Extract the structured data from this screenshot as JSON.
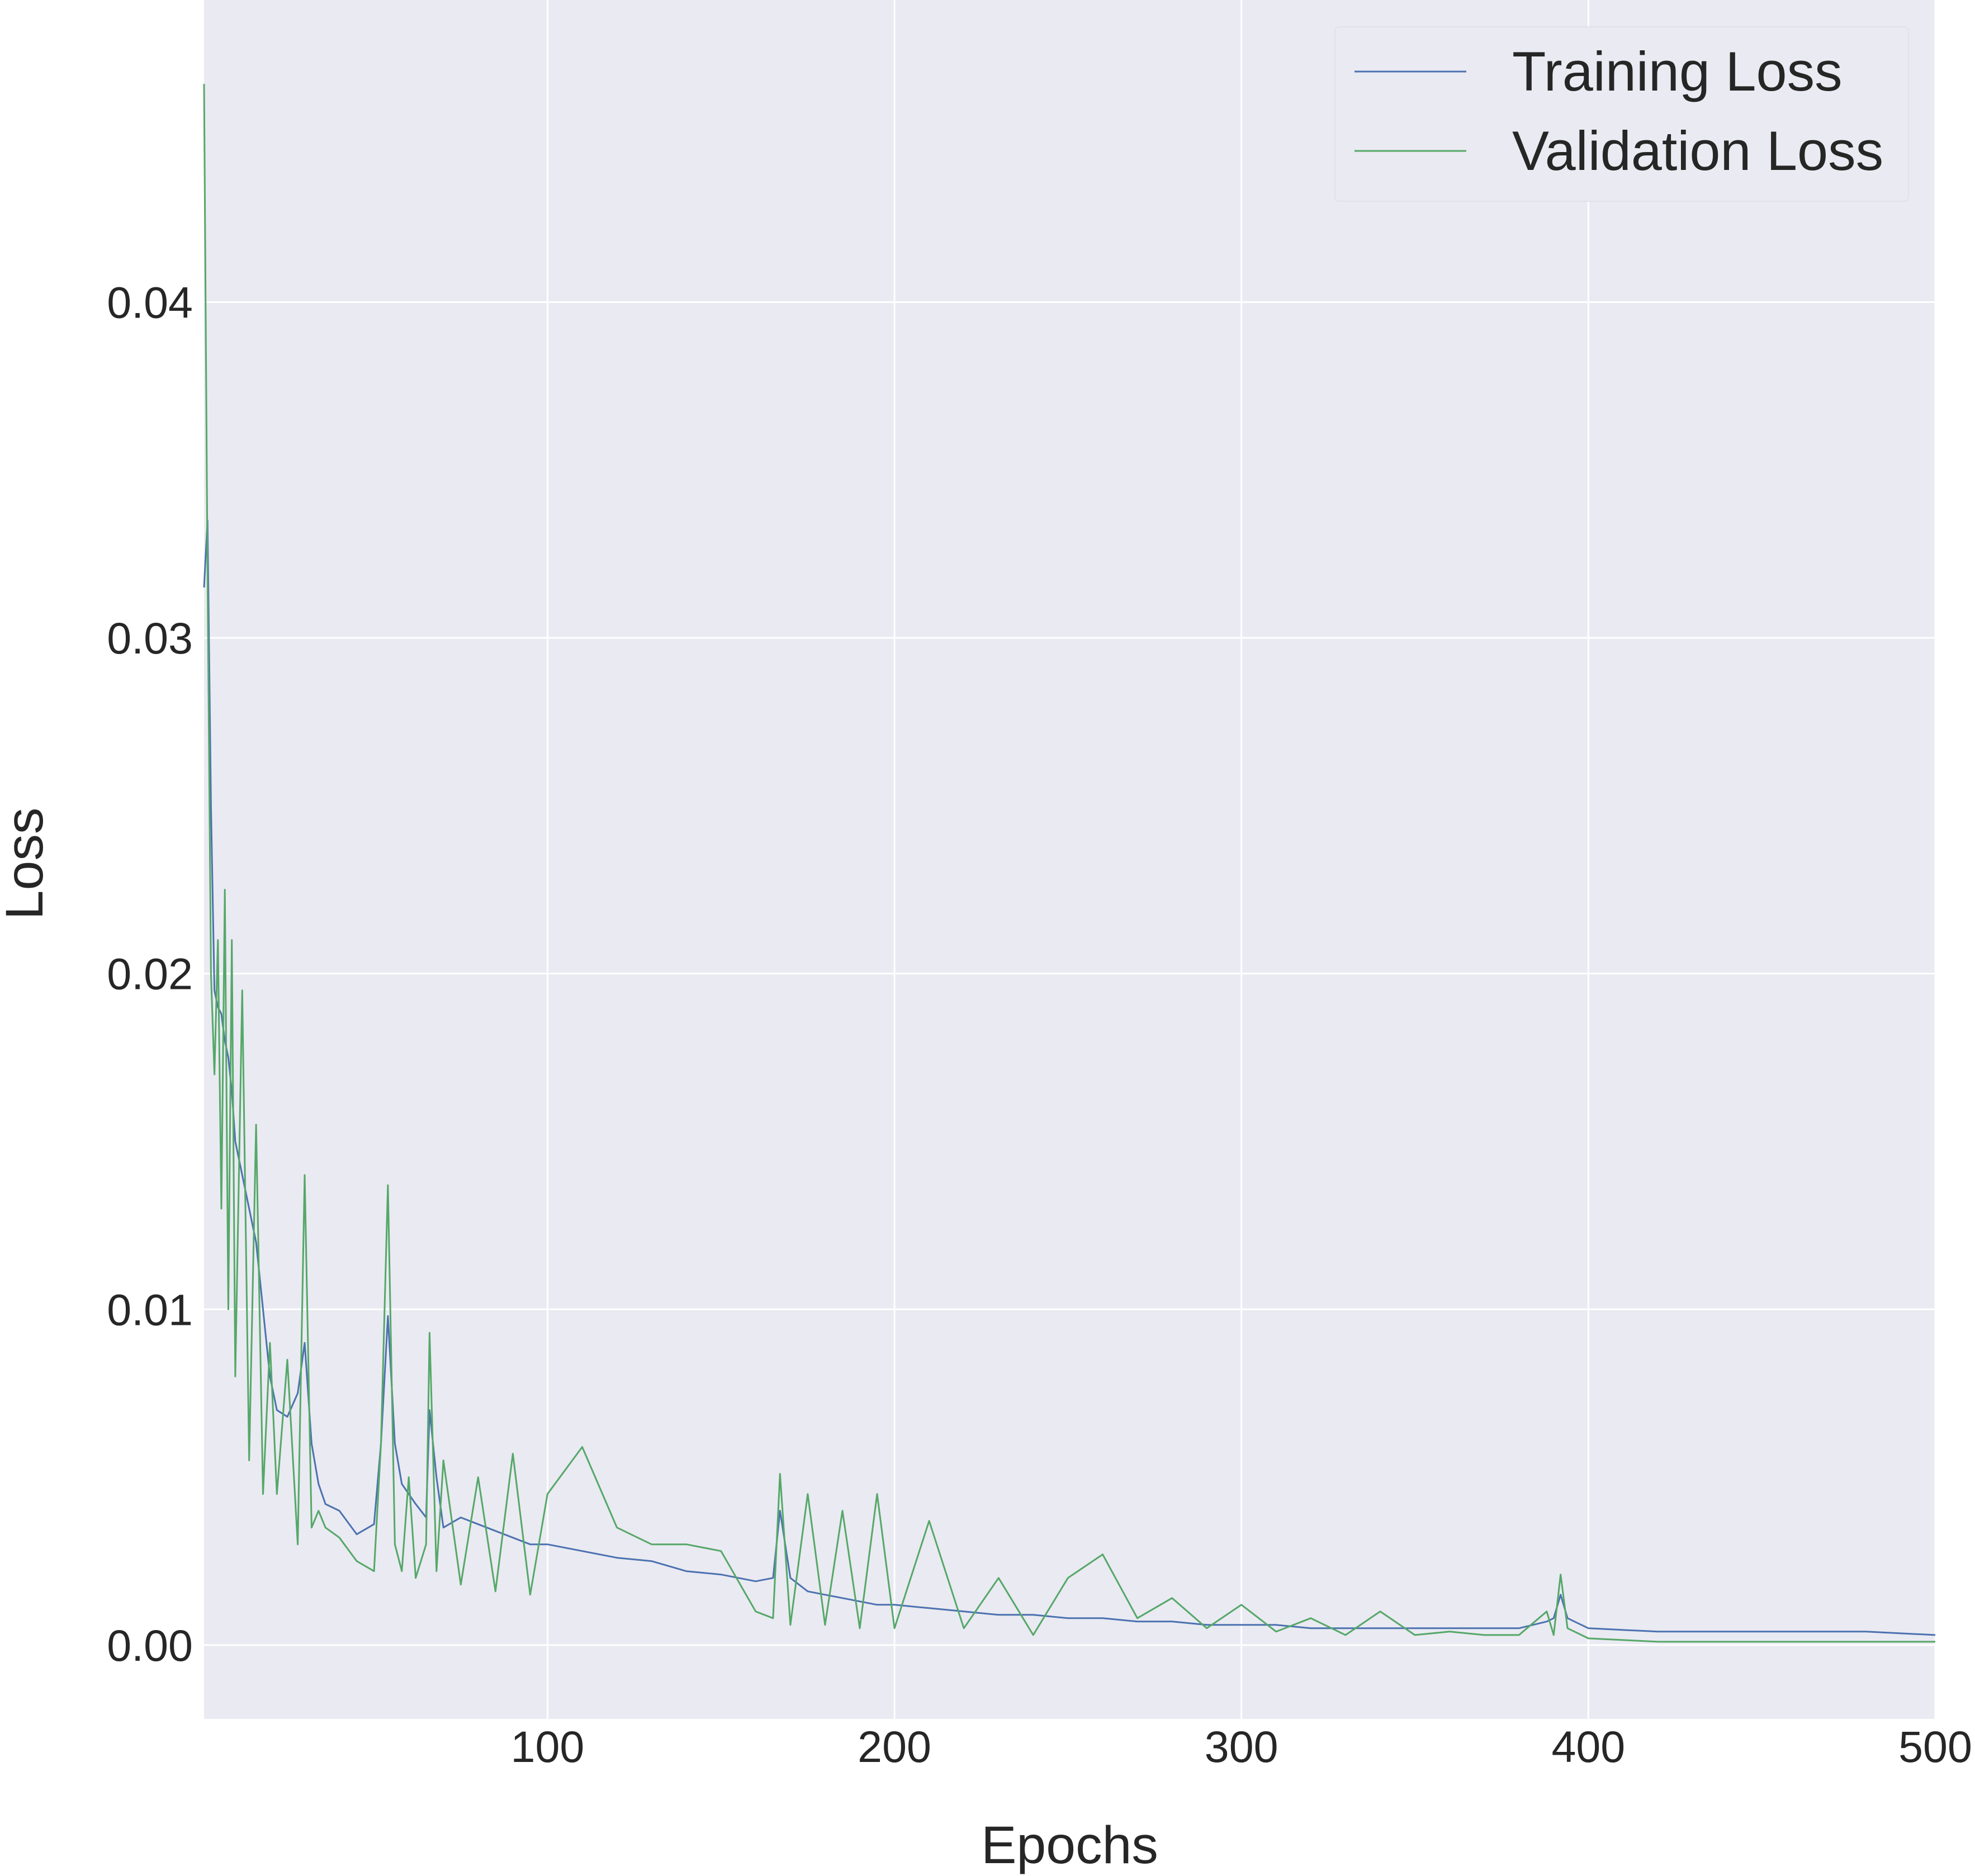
{
  "chart_data": {
    "type": "line",
    "title": "",
    "xlabel": "Epochs",
    "ylabel": "Loss",
    "xlim": [
      1,
      500
    ],
    "ylim": [
      -0.0022,
      0.049
    ],
    "x_ticks": [
      100,
      200,
      300,
      400,
      500
    ],
    "x_tick_labels": [
      "100",
      "200",
      "300",
      "400",
      "500"
    ],
    "y_ticks": [
      0.0,
      0.01,
      0.02,
      0.03,
      0.04
    ],
    "y_tick_labels": [
      "0.00",
      "0.01",
      "0.02",
      "0.03",
      "0.04"
    ],
    "grid": true,
    "legend_position": "upper right",
    "series": [
      {
        "name": "Training Loss",
        "color": "#4c72b0",
        "x": [
          1,
          2,
          3,
          4,
          5,
          6,
          7,
          8,
          9,
          10,
          12,
          14,
          16,
          18,
          20,
          22,
          25,
          28,
          30,
          32,
          34,
          36,
          40,
          45,
          50,
          52,
          54,
          56,
          58,
          60,
          62,
          65,
          66,
          68,
          70,
          75,
          80,
          85,
          90,
          95,
          100,
          110,
          120,
          130,
          140,
          150,
          160,
          165,
          167,
          170,
          175,
          180,
          185,
          190,
          195,
          200,
          210,
          220,
          230,
          240,
          250,
          260,
          270,
          280,
          290,
          300,
          310,
          320,
          330,
          340,
          350,
          360,
          370,
          380,
          388,
          390,
          392,
          394,
          400,
          420,
          440,
          460,
          480,
          500
        ],
        "y": [
          0.0315,
          0.0335,
          0.025,
          0.0195,
          0.019,
          0.0188,
          0.018,
          0.0175,
          0.0165,
          0.015,
          0.014,
          0.013,
          0.012,
          0.01,
          0.008,
          0.007,
          0.0068,
          0.0075,
          0.009,
          0.006,
          0.0048,
          0.0042,
          0.004,
          0.0033,
          0.0036,
          0.006,
          0.0098,
          0.006,
          0.0048,
          0.0045,
          0.0042,
          0.0038,
          0.007,
          0.005,
          0.0035,
          0.0038,
          0.0036,
          0.0034,
          0.0032,
          0.003,
          0.003,
          0.0028,
          0.0026,
          0.0025,
          0.0022,
          0.0021,
          0.0019,
          0.002,
          0.004,
          0.002,
          0.0016,
          0.0015,
          0.0014,
          0.0013,
          0.0012,
          0.0012,
          0.0011,
          0.001,
          0.0009,
          0.0009,
          0.0008,
          0.0008,
          0.0007,
          0.0007,
          0.0006,
          0.0006,
          0.0006,
          0.0005,
          0.0005,
          0.0005,
          0.0005,
          0.0005,
          0.0005,
          0.0005,
          0.0007,
          0.0008,
          0.0015,
          0.0008,
          0.0005,
          0.0004,
          0.0004,
          0.0004,
          0.0004,
          0.0003
        ]
      },
      {
        "name": "Validation Loss",
        "color": "#55a868",
        "x": [
          1,
          2,
          3,
          4,
          5,
          6,
          7,
          8,
          9,
          10,
          12,
          14,
          16,
          18,
          20,
          22,
          25,
          28,
          30,
          32,
          34,
          36,
          40,
          45,
          50,
          52,
          54,
          56,
          58,
          60,
          62,
          65,
          66,
          68,
          70,
          75,
          80,
          85,
          90,
          95,
          100,
          110,
          120,
          130,
          140,
          150,
          160,
          165,
          167,
          170,
          175,
          180,
          185,
          190,
          195,
          200,
          210,
          220,
          230,
          240,
          250,
          260,
          270,
          280,
          290,
          300,
          310,
          320,
          330,
          340,
          350,
          360,
          370,
          380,
          388,
          390,
          392,
          394,
          400,
          420,
          440,
          460,
          480,
          500
        ],
        "y": [
          0.0465,
          0.032,
          0.02,
          0.017,
          0.021,
          0.013,
          0.0225,
          0.01,
          0.021,
          0.008,
          0.0195,
          0.0055,
          0.0155,
          0.0045,
          0.009,
          0.0045,
          0.0085,
          0.003,
          0.014,
          0.0035,
          0.004,
          0.0035,
          0.0032,
          0.0025,
          0.0022,
          0.006,
          0.0137,
          0.003,
          0.0022,
          0.005,
          0.002,
          0.003,
          0.0093,
          0.0022,
          0.0055,
          0.0018,
          0.005,
          0.0016,
          0.0057,
          0.0015,
          0.0045,
          0.0059,
          0.0035,
          0.003,
          0.003,
          0.0028,
          0.001,
          0.0008,
          0.0051,
          0.0006,
          0.0045,
          0.0006,
          0.004,
          0.0005,
          0.0045,
          0.0005,
          0.0037,
          0.0005,
          0.002,
          0.0003,
          0.002,
          0.0027,
          0.0008,
          0.0014,
          0.0005,
          0.0012,
          0.0004,
          0.0008,
          0.0003,
          0.001,
          0.0003,
          0.0004,
          0.0003,
          0.0003,
          0.001,
          0.0003,
          0.0021,
          0.0005,
          0.0002,
          0.0001,
          0.0001,
          0.0001,
          0.0001,
          0.0001
        ]
      }
    ]
  }
}
